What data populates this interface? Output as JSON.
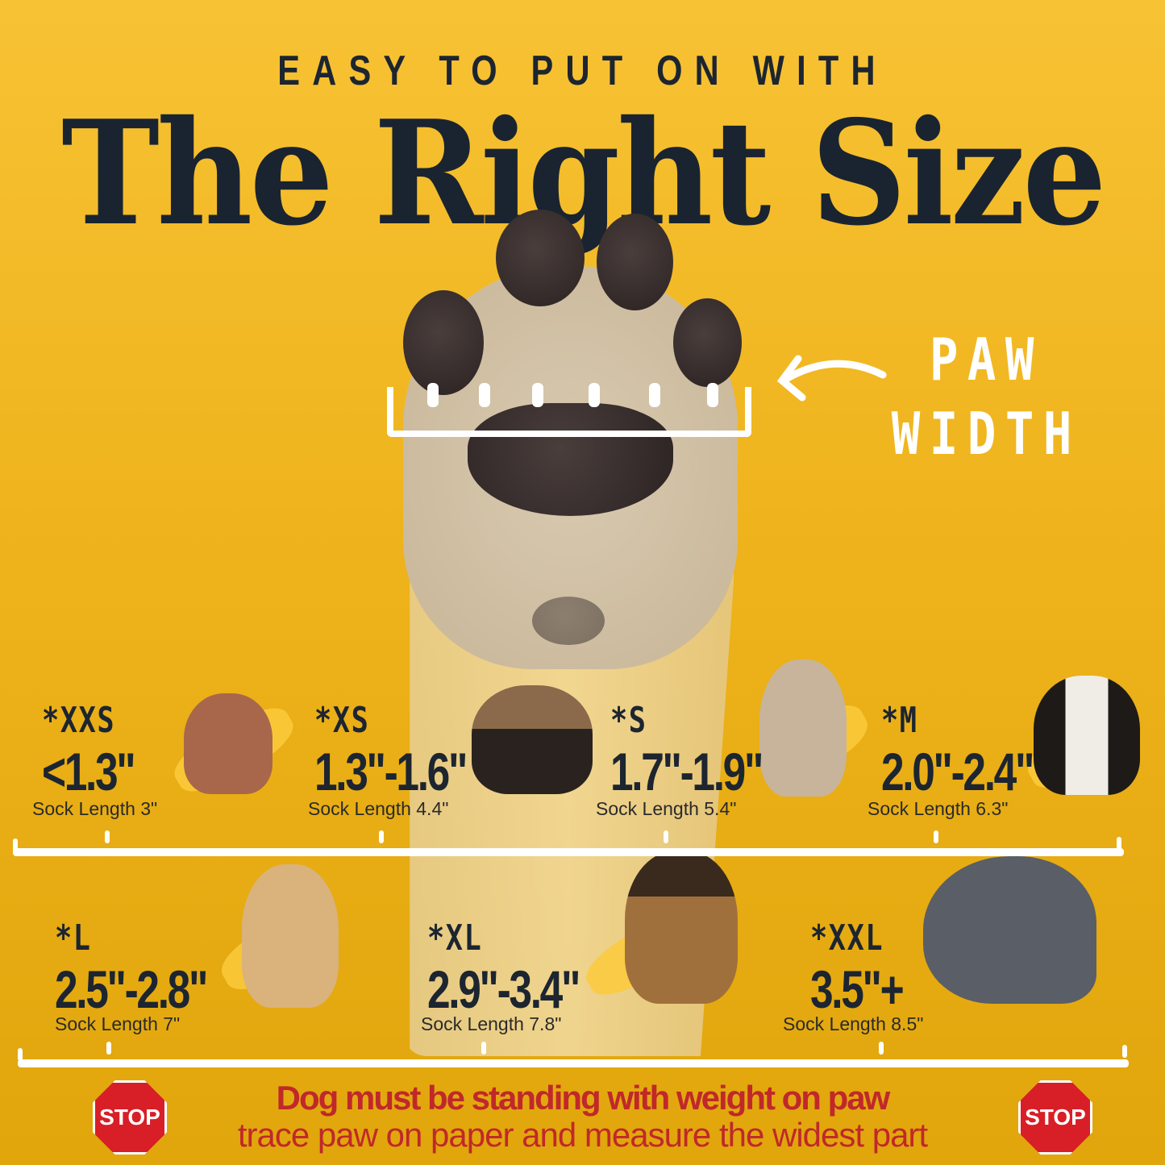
{
  "header": {
    "kicker": "EASY TO PUT ON WITH",
    "title": "The Right Size"
  },
  "paw_label": {
    "line1": "PAW",
    "line2": "WIDTH"
  },
  "sizes": [
    {
      "size": "*XXS",
      "range": "<1.3\"",
      "sock": "Sock Length 3\"",
      "dog_color": "#a8674a"
    },
    {
      "size": "*XS",
      "range": "1.3\"-1.6\"",
      "sock": "Sock Length 4.4\"",
      "dog_color": "#3a2e26"
    },
    {
      "size": "*S",
      "range": "1.7\"-1.9\"",
      "sock": "Sock Length 5.4\"",
      "dog_color": "#c7b49a"
    },
    {
      "size": "*M",
      "range": "2.0\"-2.4\"",
      "sock": "Sock Length 6.3\"",
      "dog_color": "#2a2220"
    },
    {
      "size": "*L",
      "range": "2.5\"-2.8\"",
      "sock": "Sock Length 7\"",
      "dog_color": "#d9b27c"
    },
    {
      "size": "*XL",
      "range": "2.9\"-3.4\"",
      "sock": "Sock Length 7.8\"",
      "dog_color": "#7a5430"
    },
    {
      "size": "*XXL",
      "range": "3.5\"+",
      "sock": "Sock Length 8.5\"",
      "dog_color": "#5a5e66"
    }
  ],
  "warning": {
    "line1": "Dog must be standing with weight on paw",
    "line2": "trace paw on paper and measure the widest part",
    "stop_label": "STOP"
  },
  "colors": {
    "background": "#f0b51e",
    "text": "#1c2530",
    "warning": "#c0282a",
    "stop": "#d81e27"
  }
}
